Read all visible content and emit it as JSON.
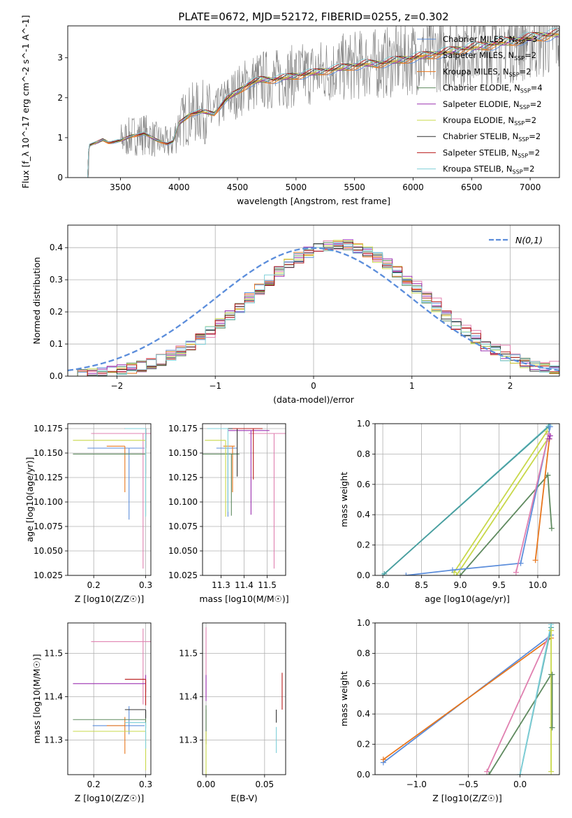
{
  "title": "PLATE=0672, MJD=52172, FIBERID=0255, z=0.302",
  "colors": {
    "blue": "#5b8ddb",
    "orange": "#e8761c",
    "teal": "#4a9e9e",
    "gray": "#888888",
    "green": "#5f8a5f",
    "purple": "#9b30b0",
    "yellowgreen": "#c8d84a",
    "black": "#333333",
    "red": "#b81a1a",
    "pink": "#e080b0",
    "cyan": "#7fcfd8"
  },
  "chart_data": [
    {
      "id": "spectrum",
      "type": "line",
      "xlabel": "wavelength [Angstrom, rest frame]",
      "ylabel": "Flux [f_λ 10^-17 erg cm^-2 s^-1 A^-1]",
      "xlim": [
        3050,
        7250
      ],
      "ylim": [
        0,
        3.8
      ],
      "xticks": [
        3500,
        4000,
        4500,
        5000,
        5500,
        6000,
        6500,
        7000
      ],
      "yticks": [
        0,
        1,
        2,
        3
      ],
      "legend_position": "right",
      "legend": [
        {
          "label": "Chabrier MILES, N_SSP=3",
          "color": "blue"
        },
        {
          "label": "Salpeter MILES, N_SSP=2",
          "color": "orange"
        },
        {
          "label": "Kroupa MILES, N_SSP=2",
          "color": "orange"
        },
        {
          "label": "Chabrier ELODIE, N_SSP=4",
          "color": "green"
        },
        {
          "label": "Salpeter ELODIE, N_SSP=2",
          "color": "purple"
        },
        {
          "label": "Kroupa ELODIE, N_SSP=2",
          "color": "yellowgreen"
        },
        {
          "label": "Chabrier STELIB, N_SSP=2",
          "color": "black"
        },
        {
          "label": "Salpeter STELIB, N_SSP=2",
          "color": "red"
        },
        {
          "label": "Kroupa STELIB, N_SSP=2",
          "color": "cyan"
        }
      ],
      "data_start": 3220,
      "data_end": 7250,
      "model_points": [
        [
          3220,
          0.0
        ],
        [
          3230,
          0.8
        ],
        [
          3300,
          0.88
        ],
        [
          3350,
          0.95
        ],
        [
          3400,
          0.88
        ],
        [
          3500,
          0.92
        ],
        [
          3600,
          1.05
        ],
        [
          3700,
          1.1
        ],
        [
          3800,
          0.95
        ],
        [
          3900,
          0.85
        ],
        [
          3950,
          0.9
        ],
        [
          4000,
          1.35
        ],
        [
          4100,
          1.6
        ],
        [
          4200,
          1.65
        ],
        [
          4300,
          1.6
        ],
        [
          4400,
          1.95
        ],
        [
          4500,
          2.15
        ],
        [
          4600,
          2.35
        ],
        [
          4700,
          2.45
        ],
        [
          4800,
          2.45
        ],
        [
          4900,
          2.5
        ],
        [
          5000,
          2.55
        ],
        [
          5100,
          2.6
        ],
        [
          5200,
          2.65
        ],
        [
          5300,
          2.7
        ],
        [
          5400,
          2.75
        ],
        [
          5500,
          2.8
        ],
        [
          5600,
          2.85
        ],
        [
          5700,
          2.85
        ],
        [
          5800,
          2.9
        ],
        [
          5900,
          2.95
        ],
        [
          6000,
          3.0
        ],
        [
          6100,
          3.05
        ],
        [
          6200,
          3.1
        ],
        [
          6300,
          3.15
        ],
        [
          6400,
          3.2
        ],
        [
          6500,
          3.25
        ],
        [
          6600,
          3.3
        ],
        [
          6700,
          3.35
        ],
        [
          6800,
          3.4
        ],
        [
          6900,
          3.45
        ],
        [
          7000,
          3.5
        ],
        [
          7100,
          3.55
        ],
        [
          7250,
          3.6
        ]
      ]
    },
    {
      "id": "residuals",
      "type": "step",
      "xlabel": "(data-model)/error",
      "ylabel": "Normed distribution",
      "xlim": [
        -2.5,
        2.5
      ],
      "ylim": [
        0,
        0.47
      ],
      "xticks": [
        -2,
        -1,
        0,
        1,
        2
      ],
      "yticks": [
        0.0,
        0.1,
        0.2,
        0.3,
        0.4
      ],
      "legend_position": "top-right",
      "gaussian_label": "N(0,1)",
      "bins_start": -2.5,
      "bin_width": 0.1
    },
    {
      "id": "age_vs_Z",
      "type": "errorbar",
      "xlabel": "Z [log10(Z/Z☉)]",
      "ylabel": "age  [log10(age/yr)]",
      "xlim": [
        0.15,
        0.31
      ],
      "ylim": [
        10.025,
        10.18
      ],
      "xticks": [
        0.2,
        0.3
      ],
      "yticks": [
        10.025,
        10.05,
        10.075,
        10.1,
        10.125,
        10.15,
        10.175
      ]
    },
    {
      "id": "age_vs_mass",
      "type": "errorbar",
      "xlabel": "mass [log10(M/M☉)]",
      "ylabel": "",
      "xlim": [
        11.22,
        11.58
      ],
      "ylim": [
        10.025,
        10.18
      ],
      "xticks": [
        11.3,
        11.4,
        11.5
      ],
      "yticks": [
        10.025,
        10.05,
        10.075,
        10.1,
        10.125,
        10.15,
        10.175
      ]
    },
    {
      "id": "mw_vs_age",
      "type": "line",
      "xlabel": "age  [log10(age/yr)]",
      "ylabel": "mass weight",
      "xlim": [
        7.9,
        10.28
      ],
      "ylim": [
        0,
        1
      ],
      "xticks": [
        8.0,
        8.5,
        9.0,
        9.5,
        10.0
      ],
      "yticks": [
        0.0,
        0.2,
        0.4,
        0.6,
        0.8,
        1.0
      ]
    },
    {
      "id": "mass_vs_Z",
      "type": "errorbar",
      "xlabel": "Z [log10(Z/Z☉)]",
      "ylabel": "mass [log10(M/M☉)]",
      "xlim": [
        0.15,
        0.31
      ],
      "ylim": [
        11.22,
        11.57
      ],
      "xticks": [
        0.2,
        0.3
      ],
      "yticks": [
        11.3,
        11.4,
        11.5
      ]
    },
    {
      "id": "mass_vs_ebv",
      "type": "errorbar",
      "xlabel": "E(B-V)",
      "ylabel": "",
      "xlim": [
        -0.003,
        0.068
      ],
      "ylim": [
        11.22,
        11.57
      ],
      "xticks": [
        0.0,
        0.05
      ],
      "yticks": [
        11.3,
        11.4,
        11.5
      ]
    },
    {
      "id": "mw_vs_Z",
      "type": "line",
      "xlabel": "Z [log10(Z/Z☉)]",
      "ylabel": "mass weight",
      "xlim": [
        -1.4,
        0.38
      ],
      "ylim": [
        0,
        1
      ],
      "xticks": [
        -1.0,
        -0.5,
        0.0
      ],
      "yticks": [
        0.0,
        0.2,
        0.4,
        0.6,
        0.8,
        1.0
      ]
    }
  ],
  "tick_formats": {
    "spectrum": 0,
    "residuals": 1,
    "age_vs_Z": 1,
    "age_vs_mass": 1,
    "mw_vs_age": 1,
    "mass_vs_Z": 1,
    "mass_vs_ebv": 2,
    "mw_vs_Z": 1
  }
}
